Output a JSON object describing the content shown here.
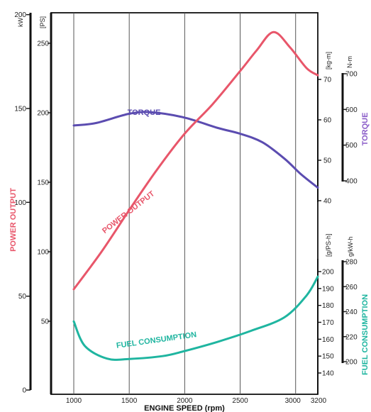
{
  "chart_data": {
    "type": "line",
    "xlabel": "ENGINE SPEED (rpm)",
    "x_ticks": [
      1000,
      1500,
      2000,
      2500,
      3000,
      3200
    ],
    "xlim": [
      1000,
      3200
    ],
    "grid": "vertical lines at 1000, 1500, 2000, 2500, 3000 rpm",
    "axes": {
      "kw": {
        "unit": "kW",
        "ticks": [
          0,
          50,
          100,
          150,
          200
        ]
      },
      "ps": {
        "unit": "[PS]",
        "ticks": [
          50,
          100,
          150,
          200,
          250
        ]
      },
      "power_label": "POWER OUTPUT",
      "kgm": {
        "unit": "[kg-m]",
        "ticks": [
          40,
          50,
          60,
          70
        ]
      },
      "nm": {
        "unit": "N-m",
        "ticks": [
          400,
          500,
          600,
          700
        ]
      },
      "torque_label": "TORQUE",
      "gps": {
        "unit": "[g/PS-h]",
        "ticks": [
          140,
          150,
          160,
          170,
          180,
          190,
          200
        ]
      },
      "gkw": {
        "unit": "g/kW-h",
        "ticks": [
          200,
          220,
          240,
          260,
          280
        ]
      },
      "fuel_label": "FUEL CONSUMPTION"
    },
    "series": [
      {
        "name": "TORQUE",
        "color": "#5b4cb0",
        "unit": "N-m",
        "x": [
          1000,
          1200,
          1500,
          1700,
          2000,
          2300,
          2500,
          2700,
          2900,
          3050,
          3200
        ],
        "y": [
          555,
          562,
          588,
          592,
          577,
          548,
          532,
          508,
          462,
          418,
          381
        ]
      },
      {
        "name": "POWER OUTPUT",
        "color": "#e8566a",
        "unit": "PS",
        "x": [
          1000,
          1250,
          1500,
          1750,
          2000,
          2250,
          2500,
          2650,
          2800,
          2950,
          3100,
          3200
        ],
        "y": [
          73,
          100,
          130,
          159,
          185,
          206,
          230,
          245,
          258,
          247,
          232,
          227
        ]
      },
      {
        "name": "FUEL CONSUMPTION",
        "color": "#1fb5a0",
        "unit": "g/PS-h",
        "x": [
          1000,
          1100,
          1300,
          1500,
          1800,
          2000,
          2300,
          2600,
          2900,
          3100,
          3200
        ],
        "y": [
          170.5,
          156,
          148.5,
          148.3,
          150,
          153,
          158.5,
          165,
          173,
          186,
          197
        ]
      }
    ]
  },
  "colors": {
    "axis": "#111111",
    "grid": "#555555",
    "power": "#e8566a",
    "torque": "#5b4cb0",
    "fuel": "#1fb5a0",
    "torque_label": "#8a5cc8"
  }
}
